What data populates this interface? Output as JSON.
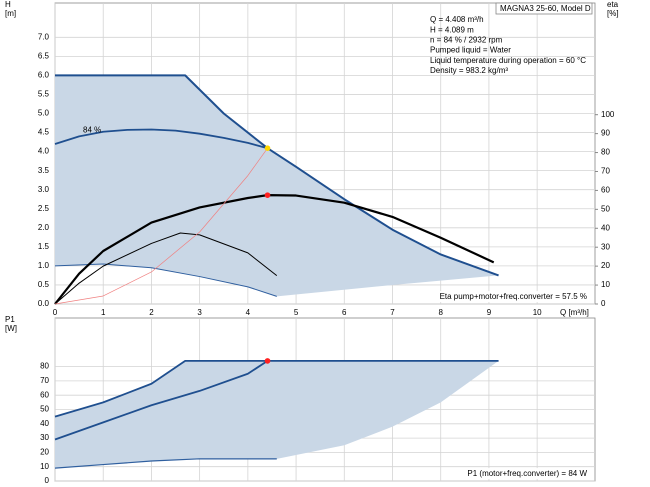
{
  "chart_data": [
    {
      "type": "line",
      "y_label": "H",
      "y_unit": "[m]",
      "y2_label": "eta",
      "y2_unit": "[%]",
      "x_label": "Q [m³/h]",
      "model": "MAGNA3 25-60, Model D",
      "info": [
        "Q = 4.408 m³/h",
        "H = 4.089 m",
        "n = 84 % / 2932 rpm",
        "Pumped liquid = Water",
        "Liquid temperature during operation = 60 °C",
        "Density = 983.2 kg/m³"
      ],
      "annotation": "84 %",
      "footnote": "Eta pump+motor+freq.converter = 57.5 %",
      "xlim": [
        0,
        11.2
      ],
      "xticks": [
        0,
        1,
        2,
        3,
        4,
        5,
        6,
        7,
        8,
        9,
        10
      ],
      "ylim": [
        0,
        7.9
      ],
      "yticks": [
        {
          "value": 0,
          "label": "0.0"
        },
        {
          "value": 0.5,
          "label": "0.5"
        },
        {
          "value": 1,
          "label": "1.0"
        },
        {
          "value": 1.5,
          "label": "1.5"
        },
        {
          "value": 2,
          "label": "2.0"
        },
        {
          "value": 2.5,
          "label": "2.5"
        },
        {
          "value": 3,
          "label": "3.0"
        },
        {
          "value": 3.5,
          "label": "3.5"
        },
        {
          "value": 4,
          "label": "4.0"
        },
        {
          "value": 4.5,
          "label": "4.5"
        },
        {
          "value": 5,
          "label": "5.0"
        },
        {
          "value": 5.5,
          "label": "5.5"
        },
        {
          "value": 6,
          "label": "6.0"
        },
        {
          "value": 6.5,
          "label": "6.5"
        },
        {
          "value": 7,
          "label": "7.0"
        }
      ],
      "y2lim": [
        0,
        159
      ],
      "y2ticks": [
        0,
        10,
        20,
        30,
        40,
        50,
        60,
        70,
        80,
        90,
        100
      ],
      "grid": true,
      "region": {
        "color": "#c9d7e6",
        "x": [
          0,
          2.7,
          3.5,
          4.408,
          5,
          6,
          7,
          8,
          9.2,
          7,
          4.6,
          4,
          3,
          2,
          1,
          0
        ],
        "values": [
          6,
          6,
          5.0,
          4.089,
          3.6,
          2.75,
          1.95,
          1.3,
          0.75,
          0.5,
          0.2,
          0.45,
          0.72,
          0.95,
          1.05,
          1.0
        ]
      },
      "series": [
        {
          "color": "#1f4f8f",
          "x": [
            0,
            2.7,
            3.5,
            4.408,
            5,
            6,
            7,
            8,
            9.2
          ],
          "values": [
            6,
            6,
            5.0,
            4.089,
            3.6,
            2.75,
            1.95,
            1.3,
            0.75
          ]
        },
        {
          "color": "#1f4f8f",
          "x": [
            0,
            0.5,
            1,
            1.5,
            2,
            2.5,
            3,
            3.5,
            4,
            4.408
          ],
          "values": [
            4.2,
            4.4,
            4.52,
            4.57,
            4.58,
            4.55,
            4.47,
            4.36,
            4.23,
            4.089
          ]
        },
        {
          "color": "#2f5f9f",
          "x": [
            0,
            1,
            2,
            3,
            4,
            4.6
          ],
          "values": [
            1.0,
            1.05,
            0.95,
            0.72,
            0.45,
            0.2
          ]
        },
        {
          "color": "#000000",
          "axis": "y2",
          "x": [
            0,
            0.5,
            1,
            2,
            3,
            4,
            4.408,
            5,
            6,
            7,
            8,
            9.1
          ],
          "values": [
            0,
            16,
            28,
            43,
            51,
            56,
            57.5,
            57.3,
            53.5,
            46,
            35,
            22
          ]
        },
        {
          "color": "#000000",
          "axis": "y2",
          "x": [
            0,
            0.5,
            1,
            2,
            2.6,
            3,
            4,
            4.6
          ],
          "values": [
            0,
            11,
            20,
            32,
            37.5,
            36.5,
            27,
            15
          ]
        },
        {
          "color": "#f08080",
          "x": [
            0,
            1,
            2,
            3,
            4,
            4.408
          ],
          "values": [
            0,
            0.21,
            0.84,
            1.89,
            3.37,
            4.089
          ]
        }
      ],
      "points": [
        {
          "x": 4.408,
          "value": 4.089,
          "color": "#ffd700"
        },
        {
          "x": 4.408,
          "value": 57.5,
          "axis": "y2",
          "color": "#ff2020"
        }
      ]
    },
    {
      "type": "line",
      "y_label": "P1",
      "y_unit": "[W]",
      "footnote": "P1 (motor+freq.converter) = 84 W",
      "xlim": [
        0,
        11.2
      ],
      "ylim": [
        0,
        114
      ],
      "yticks": [
        0,
        10,
        20,
        30,
        40,
        50,
        60,
        70,
        80
      ],
      "grid": true,
      "region": {
        "color": "#c9d7e6",
        "x": [
          0,
          1,
          2,
          2.7,
          9.2,
          8,
          7,
          6,
          4.6,
          4,
          3,
          2,
          1,
          0
        ],
        "values": [
          45,
          55,
          68,
          84,
          84,
          55,
          38,
          25,
          15.5,
          15.5,
          15.5,
          14,
          11.5,
          9
        ]
      },
      "series": [
        {
          "color": "#1f4f8f",
          "x": [
            0,
            1,
            2,
            2.7,
            9.2
          ],
          "values": [
            45,
            55,
            68,
            84,
            84
          ]
        },
        {
          "color": "#1f4f8f",
          "x": [
            0,
            1,
            2,
            3,
            4,
            4.408
          ],
          "values": [
            29,
            41,
            53,
            63,
            75,
            84
          ]
        },
        {
          "color": "#2f5f9f",
          "x": [
            0,
            1,
            2,
            3,
            4.6
          ],
          "values": [
            9,
            11.5,
            14,
            15.5,
            15.5
          ]
        }
      ],
      "points": [
        {
          "x": 4.408,
          "value": 84,
          "color": "#ff2020"
        }
      ]
    }
  ]
}
